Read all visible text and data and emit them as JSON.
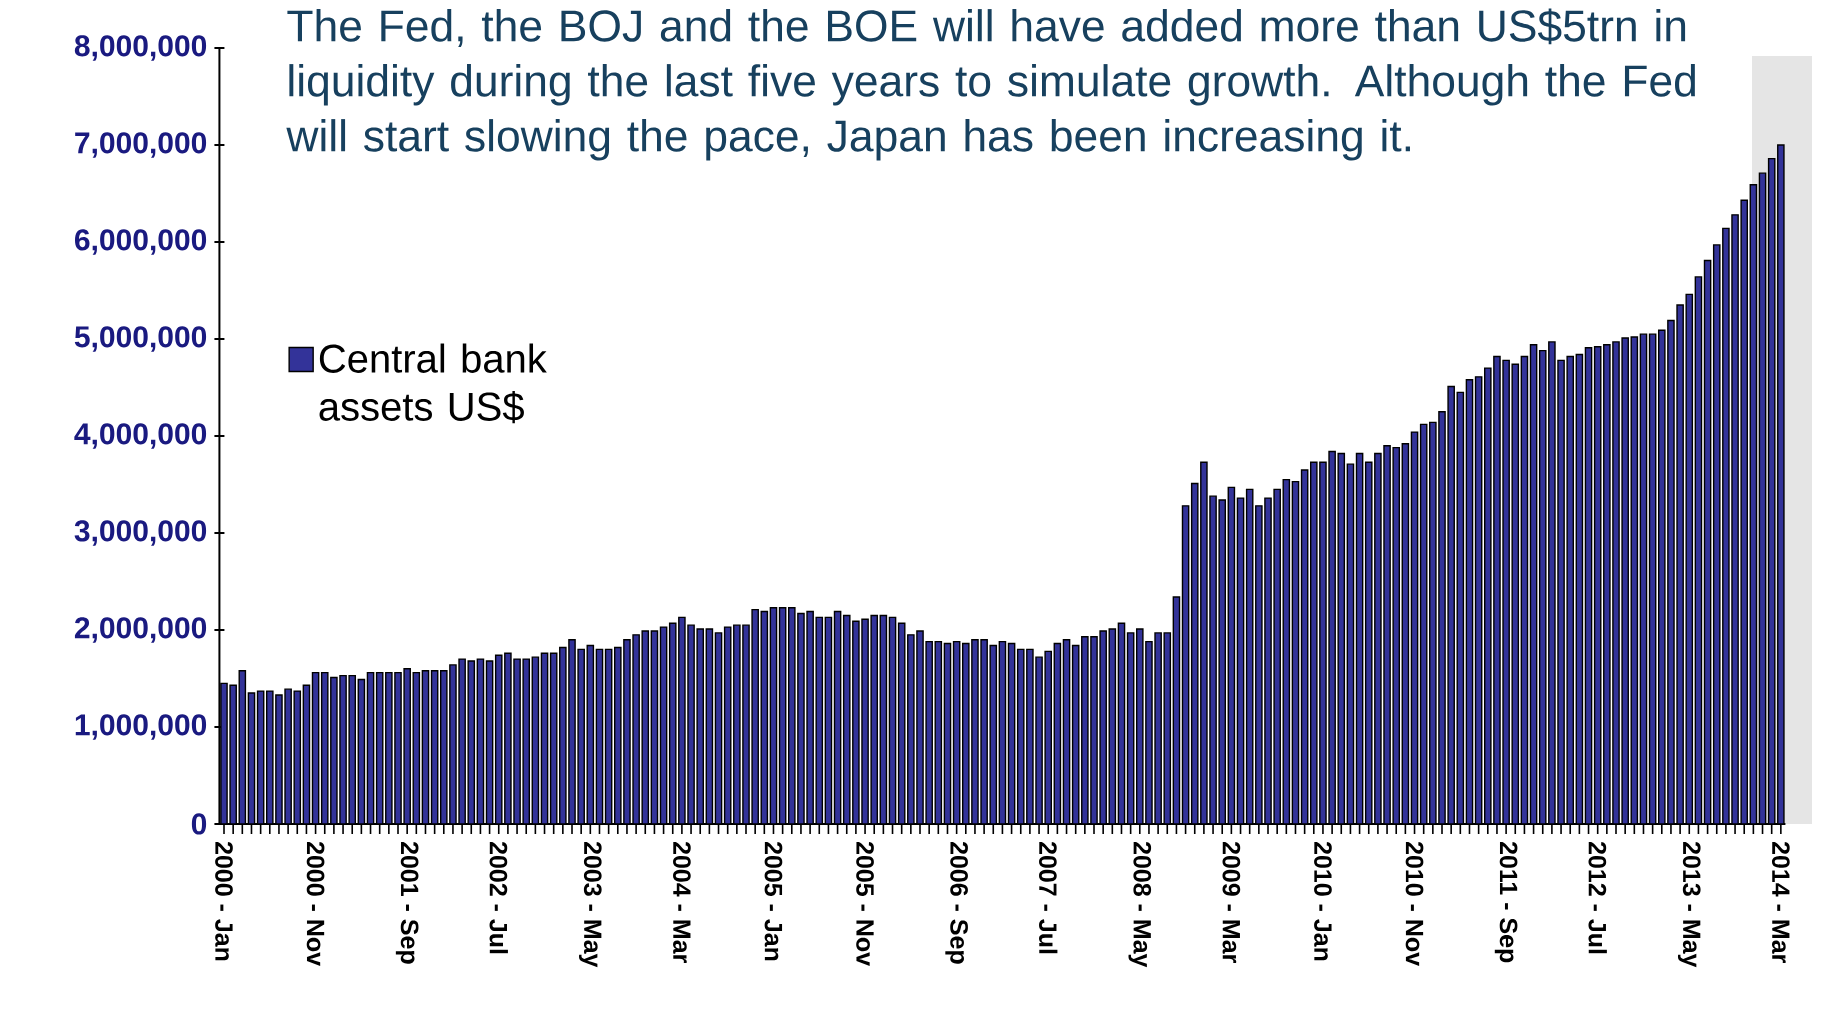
{
  "chart_data": {
    "type": "bar",
    "title": "The Fed, the BOJ and the BOE will have added more than US$5trn in liquidity during the last five years to simulate growth. Although the Fed will start slowing the pace, Japan has been increasing it.",
    "categories": [
      "2000 - Jan",
      null,
      null,
      null,
      null,
      null,
      null,
      null,
      null,
      null,
      "2000 - Nov",
      null,
      null,
      null,
      null,
      null,
      null,
      null,
      null,
      null,
      "2001 - Sep",
      null,
      null,
      null,
      null,
      null,
      null,
      null,
      null,
      null,
      "2002 - Jul",
      null,
      null,
      null,
      null,
      null,
      null,
      null,
      null,
      null,
      "2003 - May",
      null,
      null,
      null,
      null,
      null,
      null,
      null,
      null,
      null,
      "2004 - Mar",
      null,
      null,
      null,
      null,
      null,
      null,
      null,
      null,
      null,
      "2005 - Jan",
      null,
      null,
      null,
      null,
      null,
      null,
      null,
      null,
      null,
      "2005 - Nov",
      null,
      null,
      null,
      null,
      null,
      null,
      null,
      null,
      null,
      "2006 - Sep",
      null,
      null,
      null,
      null,
      null,
      null,
      null,
      null,
      null,
      "2007 - Jul",
      null,
      null,
      null,
      null,
      null,
      null,
      null,
      null,
      null,
      "2008 - May",
      null,
      null,
      null,
      null,
      null,
      null,
      null,
      null,
      null,
      "2009 - Mar",
      null,
      null,
      null,
      null,
      null,
      null,
      null,
      null,
      null,
      "2010 - Jan",
      null,
      null,
      null,
      null,
      null,
      null,
      null,
      null,
      null,
      "2010 - Nov",
      null,
      null,
      null,
      null,
      null,
      null,
      null,
      null,
      null,
      "2011 - Sep",
      null,
      null,
      null,
      null,
      null,
      null,
      null,
      null,
      null,
      "2012 - Jul",
      null,
      null,
      null,
      null,
      null,
      null,
      null,
      null,
      null,
      "2013 - May",
      null,
      null,
      null,
      null,
      null,
      null,
      null,
      null,
      null,
      "2014 - Mar"
    ],
    "series": [
      {
        "name": "Central bank assets US$",
        "color": "#333399",
        "values": [
          1450000,
          1430000,
          1580000,
          1350000,
          1370000,
          1370000,
          1330000,
          1390000,
          1370000,
          1430000,
          1560000,
          1560000,
          1510000,
          1530000,
          1530000,
          1490000,
          1560000,
          1560000,
          1560000,
          1560000,
          1600000,
          1560000,
          1580000,
          1580000,
          1580000,
          1640000,
          1700000,
          1680000,
          1700000,
          1680000,
          1740000,
          1760000,
          1700000,
          1700000,
          1720000,
          1760000,
          1760000,
          1820000,
          1900000,
          1800000,
          1840000,
          1800000,
          1800000,
          1820000,
          1900000,
          1950000,
          1990000,
          1990000,
          2030000,
          2070000,
          2130000,
          2050000,
          2010000,
          2010000,
          1970000,
          2030000,
          2050000,
          2050000,
          2210000,
          2190000,
          2230000,
          2230000,
          2230000,
          2170000,
          2190000,
          2130000,
          2130000,
          2190000,
          2150000,
          2090000,
          2110000,
          2150000,
          2150000,
          2130000,
          2070000,
          1950000,
          1990000,
          1880000,
          1880000,
          1860000,
          1880000,
          1860000,
          1900000,
          1900000,
          1840000,
          1880000,
          1860000,
          1800000,
          1800000,
          1720000,
          1780000,
          1860000,
          1900000,
          1840000,
          1930000,
          1930000,
          1990000,
          2010000,
          2070000,
          1970000,
          2010000,
          1880000,
          1970000,
          1970000,
          2340000,
          3280000,
          3510000,
          3730000,
          3380000,
          3340000,
          3470000,
          3360000,
          3450000,
          3280000,
          3360000,
          3450000,
          3550000,
          3530000,
          3650000,
          3730000,
          3730000,
          3840000,
          3820000,
          3710000,
          3820000,
          3730000,
          3820000,
          3900000,
          3880000,
          3920000,
          4040000,
          4120000,
          4140000,
          4250000,
          4510000,
          4450000,
          4580000,
          4610000,
          4700000,
          4820000,
          4780000,
          4740000,
          4820000,
          4940000,
          4880000,
          4970000,
          4780000,
          4820000,
          4840000,
          4910000,
          4920000,
          4940000,
          4970000,
          5010000,
          5020000,
          5050000,
          5050000,
          5090000,
          5190000,
          5350000,
          5460000,
          5640000,
          5810000,
          5970000,
          6140000,
          6280000,
          6430000,
          6590000,
          6710000,
          6860000,
          7000000
        ]
      }
    ],
    "ylim": [
      0,
      8000000
    ],
    "yticks": [
      0,
      {
        "value": 1000000,
        "label": "1,000,000"
      },
      {
        "value": 2000000,
        "label": "2,000,000"
      },
      {
        "value": 3000000,
        "label": "3,000,000"
      },
      {
        "value": 4000000,
        "label": "4,000,000"
      },
      {
        "value": 5000000,
        "label": "5,000,000"
      },
      {
        "value": 6000000,
        "label": "6,000,000"
      },
      {
        "value": 7000000,
        "label": "7,000,000"
      },
      {
        "value": 8000000,
        "label": "8,000,000"
      }
    ],
    "legend": "left"
  }
}
